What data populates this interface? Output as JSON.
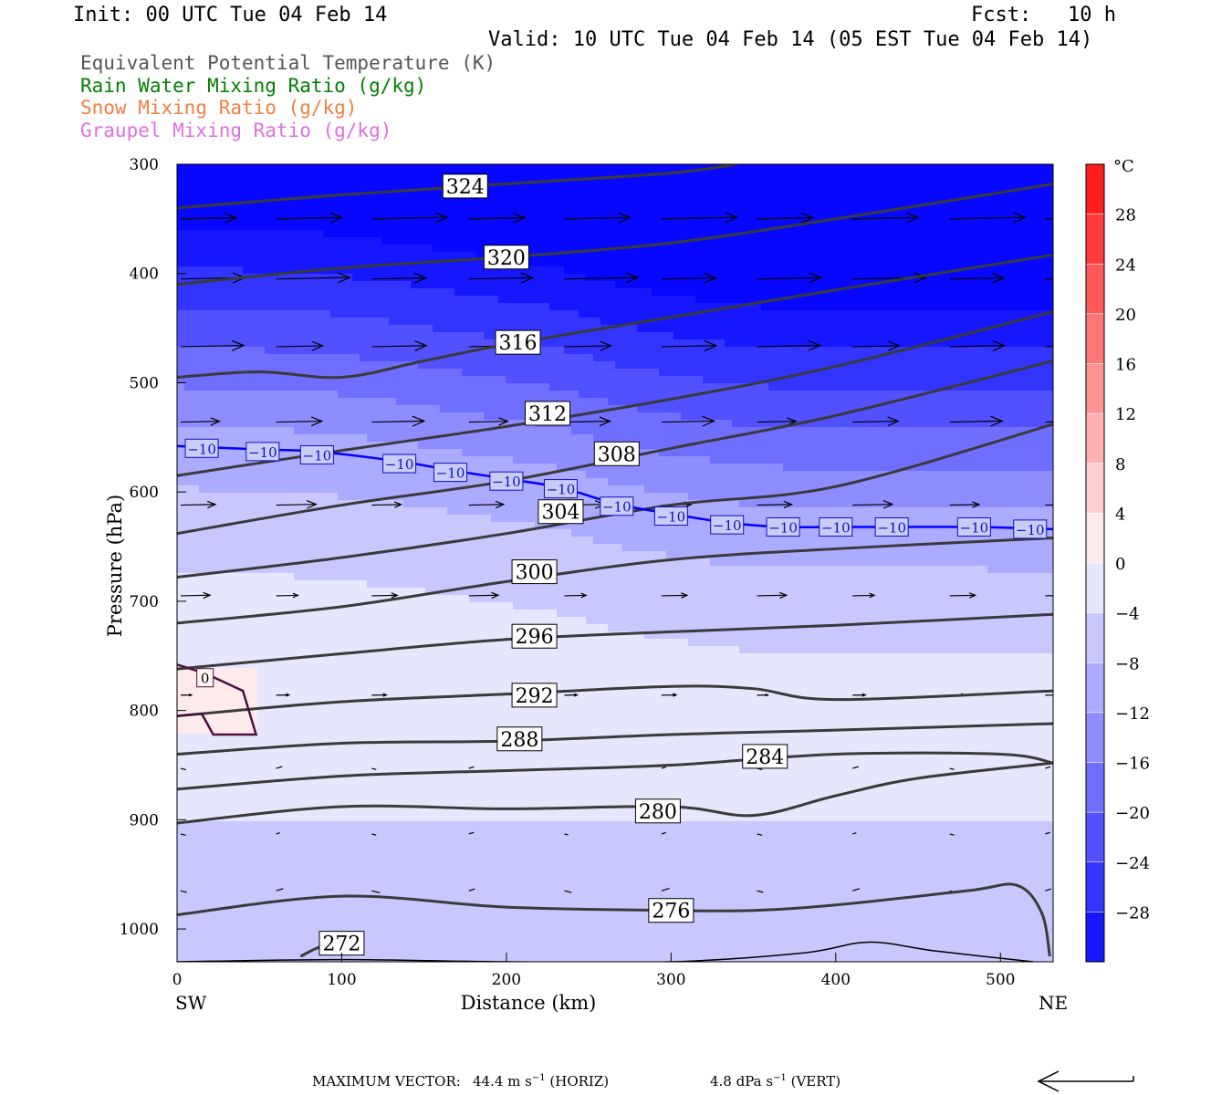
{
  "header": {
    "init": "Init: 00 UTC Tue 04 Feb 14",
    "fcst": "Fcst:   10 h",
    "valid": "Valid: 10 UTC Tue 04 Feb 14 (05 EST Tue 04 Feb 14)"
  },
  "legend": [
    {
      "text": "Equivalent Potential Temperature (K)",
      "color": "#555555"
    },
    {
      "text": "Rain Water Mixing Ratio (g/kg)",
      "color": "#008000"
    },
    {
      "text": "Snow Mixing Ratio (g/kg)",
      "color": "#f08040"
    },
    {
      "text": "Graupel Mixing Ratio (g/kg)",
      "color": "#e070e0"
    }
  ],
  "chart_data": {
    "type": "heatmap",
    "xlabel": "Distance (km)",
    "ylabel": "Pressure (hPa)",
    "x_endpoints": {
      "left": "SW",
      "right": "NE"
    },
    "xlim": [
      0,
      532
    ],
    "ylim": [
      1030,
      300
    ],
    "x_ticks": [
      0,
      100,
      200,
      300,
      400,
      500
    ],
    "y_ticks": [
      300,
      400,
      500,
      600,
      700,
      800,
      900,
      1000
    ],
    "colorbar": {
      "unit": "°C",
      "range": [
        -32,
        32
      ],
      "ticks": [
        28,
        24,
        20,
        16,
        12,
        8,
        4,
        0,
        -4,
        -8,
        -12,
        -16,
        -20,
        -24,
        -28
      ]
    },
    "theta_e_contours": [
      {
        "value": 324,
        "label_at": [
          175,
          320
        ],
        "points": [
          [
            0,
            340
          ],
          [
            100,
            328
          ],
          [
            200,
            318
          ],
          [
            300,
            308
          ],
          [
            340,
            300
          ]
        ]
      },
      {
        "value": 320,
        "label_at": [
          200,
          385
        ],
        "points": [
          [
            0,
            410
          ],
          [
            100,
            395
          ],
          [
            200,
            385
          ],
          [
            300,
            372
          ],
          [
            400,
            350
          ],
          [
            532,
            318
          ]
        ]
      },
      {
        "value": 316,
        "label_at": [
          207,
          463
        ],
        "points": [
          [
            0,
            495
          ],
          [
            50,
            490
          ],
          [
            100,
            495
          ],
          [
            150,
            480
          ],
          [
            200,
            465
          ],
          [
            300,
            440
          ],
          [
            400,
            415
          ],
          [
            532,
            383
          ]
        ]
      },
      {
        "value": 312,
        "label_at": [
          225,
          528
        ],
        "points": [
          [
            0,
            585
          ],
          [
            100,
            562
          ],
          [
            200,
            540
          ],
          [
            300,
            515
          ],
          [
            400,
            485
          ],
          [
            532,
            435
          ]
        ]
      },
      {
        "value": 308,
        "label_at": [
          267,
          565
        ],
        "points": [
          [
            0,
            638
          ],
          [
            100,
            612
          ],
          [
            200,
            590
          ],
          [
            300,
            560
          ],
          [
            400,
            530
          ],
          [
            532,
            480
          ]
        ]
      },
      {
        "value": 304,
        "label_at": [
          233,
          618
        ],
        "points": [
          [
            0,
            678
          ],
          [
            100,
            660
          ],
          [
            200,
            638
          ],
          [
            300,
            612
          ],
          [
            400,
            595
          ],
          [
            532,
            538
          ]
        ]
      },
      {
        "value": 300,
        "label_at": [
          217,
          673
        ],
        "points": [
          [
            0,
            720
          ],
          [
            100,
            705
          ],
          [
            200,
            682
          ],
          [
            300,
            662
          ],
          [
            400,
            652
          ],
          [
            532,
            642
          ]
        ]
      },
      {
        "value": 296,
        "label_at": [
          217,
          732
        ],
        "points": [
          [
            0,
            762
          ],
          [
            100,
            748
          ],
          [
            200,
            735
          ],
          [
            300,
            728
          ],
          [
            400,
            722
          ],
          [
            532,
            712
          ]
        ]
      },
      {
        "value": 292,
        "label_at": [
          217,
          786
        ],
        "points": [
          [
            0,
            805
          ],
          [
            100,
            792
          ],
          [
            200,
            785
          ],
          [
            300,
            778
          ],
          [
            350,
            780
          ],
          [
            400,
            790
          ],
          [
            532,
            782
          ]
        ]
      },
      {
        "value": 288,
        "label_at": [
          208,
          826
        ],
        "points": [
          [
            0,
            840
          ],
          [
            100,
            830
          ],
          [
            200,
            828
          ],
          [
            300,
            822
          ],
          [
            400,
            818
          ],
          [
            532,
            812
          ]
        ]
      },
      {
        "value": 284,
        "label_at": [
          357,
          842
        ],
        "points": [
          [
            0,
            872
          ],
          [
            100,
            860
          ],
          [
            200,
            855
          ],
          [
            300,
            850
          ],
          [
            400,
            840
          ],
          [
            500,
            840
          ],
          [
            532,
            848
          ]
        ]
      },
      {
        "value": 280,
        "label_at": [
          292,
          892
        ],
        "points": [
          [
            0,
            903
          ],
          [
            100,
            888
          ],
          [
            200,
            890
          ],
          [
            300,
            888
          ],
          [
            350,
            896
          ],
          [
            400,
            878
          ],
          [
            450,
            862
          ],
          [
            532,
            848
          ]
        ]
      },
      {
        "value": 276,
        "label_at": [
          300,
          983
        ],
        "points": [
          [
            0,
            987
          ],
          [
            100,
            970
          ],
          [
            200,
            980
          ],
          [
            300,
            983
          ],
          [
            350,
            983
          ],
          [
            400,
            978
          ],
          [
            480,
            965
          ],
          [
            510,
            960
          ],
          [
            525,
            985
          ],
          [
            530,
            1025
          ]
        ]
      },
      {
        "value": 272,
        "label_at": [
          100,
          1013
        ],
        "points": [
          [
            75,
            1025
          ],
          [
            90,
            1015
          ],
          [
            110,
            1015
          ]
        ]
      }
    ],
    "temperature_contours": [
      {
        "value": -10,
        "label": "−10",
        "label_positions": [
          [
            15,
            560
          ],
          [
            52,
            563
          ],
          [
            85,
            566
          ],
          [
            135,
            574
          ],
          [
            166,
            582
          ],
          [
            200,
            590
          ],
          [
            233,
            597
          ],
          [
            267,
            613
          ],
          [
            300,
            622
          ],
          [
            334,
            630
          ],
          [
            368,
            632
          ],
          [
            400,
            632
          ],
          [
            434,
            632
          ],
          [
            484,
            632
          ],
          [
            518,
            634
          ]
        ],
        "points": [
          [
            0,
            558
          ],
          [
            50,
            561
          ],
          [
            85,
            563
          ],
          [
            135,
            572
          ],
          [
            166,
            580
          ],
          [
            200,
            588
          ],
          [
            233,
            596
          ],
          [
            267,
            611
          ],
          [
            300,
            620
          ],
          [
            334,
            628
          ],
          [
            368,
            632
          ],
          [
            400,
            632
          ],
          [
            434,
            632
          ],
          [
            484,
            632
          ],
          [
            532,
            634
          ]
        ]
      },
      {
        "value": 0,
        "label": "0",
        "label_at": [
          17,
          770
        ],
        "points": [
          [
            0,
            758
          ],
          [
            17,
            766
          ],
          [
            40,
            782
          ],
          [
            48,
            822
          ],
          [
            22,
            822
          ],
          [
            15,
            803
          ],
          [
            0,
            805
          ]
        ]
      }
    ],
    "wind_vectors_note": "circulation vectors, scaled to maximum vector",
    "max_vector": {
      "label": "MAXIMUM VECTOR:",
      "horiz": "44.4 m s",
      "horiz_unit": "(HORIZ)",
      "vert": "4.8 dPa s",
      "vert_unit": "(VERT)",
      "exponent": "−1"
    }
  }
}
